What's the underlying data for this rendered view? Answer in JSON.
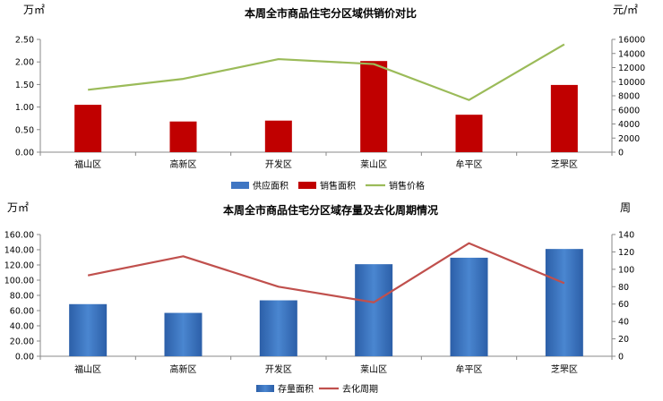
{
  "chart_data": [
    {
      "type": "bar",
      "title": "本周全市商品住宅分区域供销价对比",
      "left_unit": "万㎡",
      "right_unit": "元/㎡",
      "categories": [
        "福山区",
        "高新区",
        "开发区",
        "莱山区",
        "牟平区",
        "芝罘区"
      ],
      "ylim_left": [
        0,
        2.5
      ],
      "yticks_left": [
        "0.00",
        "0.50",
        "1.00",
        "1.50",
        "2.00",
        "2.50"
      ],
      "ylim_right": [
        0,
        16000
      ],
      "yticks_right": [
        "0",
        "2000",
        "4000",
        "6000",
        "8000",
        "10000",
        "12000",
        "14000",
        "16000"
      ],
      "series": [
        {
          "name": "供应面积",
          "kind": "bar",
          "axis": "left",
          "color": "#3f76c3",
          "values": [
            0,
            0,
            0,
            0,
            0,
            0
          ]
        },
        {
          "name": "销售面积",
          "kind": "bar",
          "axis": "left",
          "color": "#c00000",
          "values": [
            1.05,
            0.68,
            0.7,
            2.02,
            0.83,
            1.49
          ]
        },
        {
          "name": "销售价格",
          "kind": "line",
          "axis": "right",
          "color": "#9bbb59",
          "values": [
            8850,
            10400,
            13200,
            12500,
            7400,
            15300
          ]
        }
      ]
    },
    {
      "type": "bar",
      "title": "本周全市商品住宅分区域存量及去化周期情况",
      "left_unit": "万㎡",
      "right_unit": "周",
      "categories": [
        "福山区",
        "高新区",
        "开发区",
        "莱山区",
        "牟平区",
        "芝罘区"
      ],
      "ylim_left": [
        0,
        160
      ],
      "yticks_left": [
        "0.00",
        "20.00",
        "40.00",
        "60.00",
        "80.00",
        "100.00",
        "120.00",
        "140.00",
        "160.00"
      ],
      "ylim_right": [
        0,
        140
      ],
      "yticks_right": [
        "0",
        "20",
        "40",
        "60",
        "80",
        "100",
        "120",
        "140"
      ],
      "series": [
        {
          "name": "存量面积",
          "kind": "bar",
          "axis": "left",
          "color": "#3a73c0",
          "values": [
            68.5,
            57.0,
            73.5,
            121.0,
            129.5,
            141.0
          ]
        },
        {
          "name": "去化周期",
          "kind": "line",
          "axis": "right",
          "color": "#c0504d",
          "values": [
            93,
            115,
            80,
            62,
            130,
            84
          ]
        }
      ]
    }
  ]
}
